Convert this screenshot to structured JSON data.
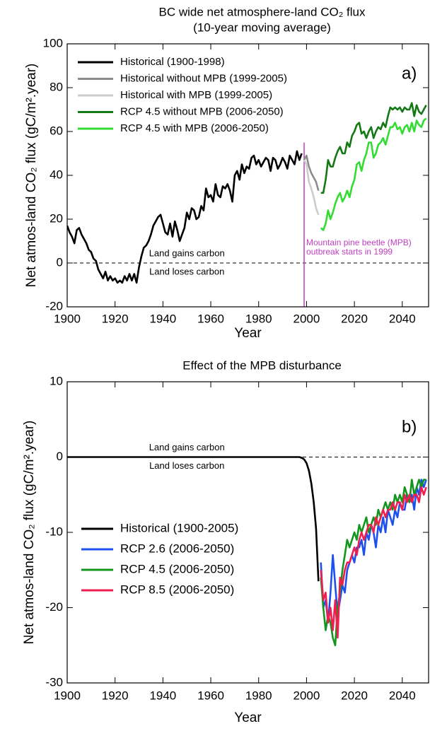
{
  "chart_data": [
    {
      "type": "line",
      "title": "BC wide net atmosphere-land CO₂ flux",
      "subtitle": "(10-year moving average)",
      "xlabel": "Year",
      "ylabel": "Net atmos-land CO₂ flux (gC/m².year)",
      "xlim": [
        1900,
        2051
      ],
      "ylim": [
        -20,
        100
      ],
      "xticks": [
        1900,
        1920,
        1940,
        1960,
        1980,
        2000,
        2020,
        2040
      ],
      "yticks": [
        -20,
        0,
        20,
        40,
        60,
        80,
        100
      ],
      "hline": 0,
      "vline": 1999,
      "vline_color": "#c040c0",
      "legend": "upper left",
      "annotations": {
        "panel_label": "a)",
        "label_above": "Land gains carbon",
        "label_below": "Land loses carbon",
        "vline_label": [
          "Mountain pine beetle (MPB)",
          "outbreak starts in 1999"
        ]
      },
      "series": [
        {
          "name": "Historical (1900-1998)",
          "color": "#000000",
          "x": [
            1900,
            1901,
            1902,
            1903,
            1904,
            1905,
            1906,
            1907,
            1908,
            1909,
            1910,
            1911,
            1912,
            1913,
            1914,
            1915,
            1916,
            1917,
            1918,
            1919,
            1920,
            1921,
            1922,
            1923,
            1924,
            1925,
            1926,
            1927,
            1928,
            1929,
            1930,
            1931,
            1932,
            1933,
            1934,
            1935,
            1936,
            1937,
            1938,
            1939,
            1940,
            1941,
            1942,
            1943,
            1944,
            1945,
            1946,
            1947,
            1948,
            1949,
            1950,
            1951,
            1952,
            1953,
            1954,
            1955,
            1956,
            1957,
            1958,
            1959,
            1960,
            1961,
            1962,
            1963,
            1964,
            1965,
            1966,
            1967,
            1968,
            1969,
            1970,
            1971,
            1972,
            1973,
            1974,
            1975,
            1976,
            1977,
            1978,
            1979,
            1980,
            1981,
            1982,
            1983,
            1984,
            1985,
            1986,
            1987,
            1988,
            1989,
            1990,
            1991,
            1992,
            1993,
            1994,
            1995,
            1996,
            1997,
            1998
          ],
          "values": [
            17,
            14,
            12,
            9,
            15,
            16,
            13,
            11,
            9,
            6,
            5,
            2,
            1,
            -3,
            -5,
            -7,
            -4,
            -8,
            -6,
            -8,
            -7,
            -9,
            -8,
            -9,
            -6,
            -8,
            -5,
            -8,
            -5,
            -9,
            -2,
            3,
            7,
            8,
            10,
            13,
            17,
            19,
            21,
            22,
            18,
            14,
            13,
            18,
            12,
            19,
            15,
            10,
            13,
            16,
            23,
            20,
            25,
            24,
            20,
            21,
            26,
            24,
            34,
            30,
            31,
            28,
            36,
            31,
            30,
            35,
            34,
            36,
            33,
            28,
            40,
            42,
            38,
            45,
            41,
            44,
            43,
            48,
            49,
            45,
            47,
            44,
            46,
            48,
            47,
            42,
            48,
            47,
            43,
            45,
            48,
            46,
            43,
            49,
            47,
            45,
            51,
            47,
            50
          ]
        },
        {
          "name": "Historical without MPB (1999-2005)",
          "color": "#8c8c8c",
          "x": [
            1999,
            2000,
            2001,
            2002,
            2003,
            2004,
            2005
          ],
          "values": [
            47,
            49,
            44,
            41,
            39,
            37,
            33
          ]
        },
        {
          "name": "Historical with MPB (1999-2005)",
          "color": "#cccccc",
          "x": [
            1999,
            2000,
            2001,
            2002,
            2003,
            2004,
            2005
          ],
          "values": [
            47,
            45,
            37,
            34,
            30,
            25,
            22
          ]
        },
        {
          "name": "RCP 4.5 without MPB (2006-2050)",
          "color": "#147814",
          "x": [
            2006,
            2007,
            2008,
            2009,
            2010,
            2011,
            2012,
            2013,
            2014,
            2015,
            2016,
            2017,
            2018,
            2019,
            2020,
            2021,
            2022,
            2023,
            2024,
            2025,
            2026,
            2027,
            2028,
            2029,
            2030,
            2031,
            2032,
            2033,
            2034,
            2035,
            2036,
            2037,
            2038,
            2039,
            2040,
            2041,
            2042,
            2043,
            2044,
            2045,
            2046,
            2047,
            2048,
            2049,
            2050
          ],
          "values": [
            32,
            32,
            38,
            47,
            44,
            44,
            48,
            51,
            53,
            50,
            50,
            55,
            53,
            58,
            60,
            63,
            64,
            59,
            60,
            57,
            60,
            62,
            57,
            60,
            62,
            61,
            64,
            62,
            67,
            71,
            70,
            71,
            70,
            71,
            69,
            71,
            70,
            70,
            73,
            67,
            72,
            69,
            68,
            70,
            72
          ]
        },
        {
          "name": "RCP 4.5 with MPB (2006-2050)",
          "color": "#32dc32",
          "x": [
            2006,
            2007,
            2008,
            2009,
            2010,
            2011,
            2012,
            2013,
            2014,
            2015,
            2016,
            2017,
            2018,
            2019,
            2020,
            2021,
            2022,
            2023,
            2024,
            2025,
            2026,
            2027,
            2028,
            2029,
            2030,
            2031,
            2032,
            2033,
            2034,
            2035,
            2036,
            2037,
            2038,
            2039,
            2040,
            2041,
            2042,
            2043,
            2044,
            2045,
            2046,
            2047,
            2048,
            2049,
            2050
          ],
          "values": [
            16,
            15,
            18,
            24,
            20,
            23,
            27,
            30,
            32,
            28,
            30,
            33,
            30,
            35,
            38,
            45,
            46,
            42,
            47,
            50,
            55,
            55,
            48,
            50,
            54,
            55,
            57,
            54,
            58,
            62,
            62,
            64,
            61,
            62,
            59,
            62,
            63,
            60,
            64,
            60,
            65,
            63,
            62,
            65,
            66
          ]
        }
      ]
    },
    {
      "type": "line",
      "title": "Effect of the MPB disturbance",
      "xlabel": "Year",
      "ylabel": "Net atmos-land CO₂ flux (gC/m².year)",
      "xlim": [
        1900,
        2051
      ],
      "ylim": [
        -30,
        10
      ],
      "xticks": [
        1900,
        1920,
        1940,
        1960,
        1980,
        2000,
        2020,
        2040
      ],
      "yticks": [
        -30,
        -20,
        -10,
        0,
        10
      ],
      "hline": 0,
      "legend": "lower left",
      "annotations": {
        "panel_label": "b)",
        "label_above": "Land gains carbon",
        "label_below": "Land loses carbon"
      },
      "series": [
        {
          "name": "Historical (1900-2005)",
          "color": "#000000",
          "x": [
            1900,
            1996,
            1997,
            1998,
            1999,
            2000,
            2001,
            2002,
            2003,
            2004,
            2005
          ],
          "values": [
            0,
            0,
            0,
            -0.1,
            -0.3,
            -0.8,
            -1.8,
            -3.5,
            -6,
            -9.5,
            -16.5
          ]
        },
        {
          "name": "RCP 2.6 (2006-2050)",
          "color": "#1e50f0",
          "x": [
            2006,
            2007,
            2008,
            2009,
            2010,
            2011,
            2012,
            2013,
            2014,
            2015,
            2016,
            2017,
            2018,
            2019,
            2020,
            2021,
            2022,
            2023,
            2024,
            2025,
            2026,
            2027,
            2028,
            2029,
            2030,
            2031,
            2032,
            2033,
            2034,
            2035,
            2036,
            2037,
            2038,
            2039,
            2040,
            2041,
            2042,
            2043,
            2044,
            2045,
            2046,
            2047,
            2048,
            2049,
            2050
          ],
          "values": [
            -14,
            -20,
            -19,
            -22,
            -18,
            -13,
            -17,
            -21,
            -19,
            -17,
            -18,
            -15,
            -14,
            -13,
            -14,
            -12,
            -12,
            -11,
            -13,
            -10,
            -11,
            -9,
            -10,
            -12,
            -9,
            -10,
            -8,
            -10,
            -7,
            -8,
            -9,
            -7,
            -8,
            -6,
            -7,
            -7,
            -5,
            -6,
            -5,
            -7,
            -4,
            -5,
            -3,
            -4,
            -3
          ]
        },
        {
          "name": "RCP 4.5 (2006-2050)",
          "color": "#14961e",
          "x": [
            2006,
            2007,
            2008,
            2009,
            2010,
            2011,
            2012,
            2013,
            2014,
            2015,
            2016,
            2017,
            2018,
            2019,
            2020,
            2021,
            2022,
            2023,
            2024,
            2025,
            2026,
            2027,
            2028,
            2029,
            2030,
            2031,
            2032,
            2033,
            2034,
            2035,
            2036,
            2037,
            2038,
            2039,
            2040,
            2041,
            2042,
            2043,
            2044,
            2045,
            2046,
            2047,
            2048,
            2049,
            2050
          ],
          "values": [
            -16,
            -20,
            -23,
            -21,
            -22,
            -24,
            -25,
            -20,
            -18,
            -15,
            -13,
            -11,
            -12,
            -11,
            -10,
            -11,
            -9,
            -10,
            -9,
            -8,
            -10,
            -9,
            -8,
            -9,
            -7,
            -8,
            -7,
            -6,
            -7,
            -6,
            -7,
            -5,
            -6,
            -5,
            -6,
            -4,
            -5,
            -6,
            -3,
            -5,
            -4,
            -3,
            -4,
            -3,
            -3
          ]
        },
        {
          "name": "RCP 8.5 (2006-2050)",
          "color": "#f01e50",
          "x": [
            2006,
            2007,
            2008,
            2009,
            2010,
            2011,
            2012,
            2013,
            2014,
            2015,
            2016,
            2017,
            2018,
            2019,
            2020,
            2021,
            2022,
            2023,
            2024,
            2025,
            2026,
            2027,
            2028,
            2029,
            2030,
            2031,
            2032,
            2033,
            2034,
            2035,
            2036,
            2037,
            2038,
            2039,
            2040,
            2041,
            2042,
            2043,
            2044,
            2045,
            2046,
            2047,
            2048,
            2049,
            2050
          ],
          "values": [
            -15,
            -19,
            -18,
            -22,
            -20,
            -23,
            -19,
            -24,
            -16,
            -17,
            -15,
            -14,
            -14,
            -13,
            -12,
            -13,
            -11,
            -10,
            -11,
            -10,
            -9,
            -9,
            -10,
            -8,
            -9,
            -8,
            -7,
            -8,
            -7,
            -7,
            -6,
            -7,
            -6,
            -6,
            -7,
            -5,
            -6,
            -5,
            -6,
            -5,
            -5,
            -6,
            -4,
            -5,
            -4
          ]
        }
      ]
    }
  ]
}
